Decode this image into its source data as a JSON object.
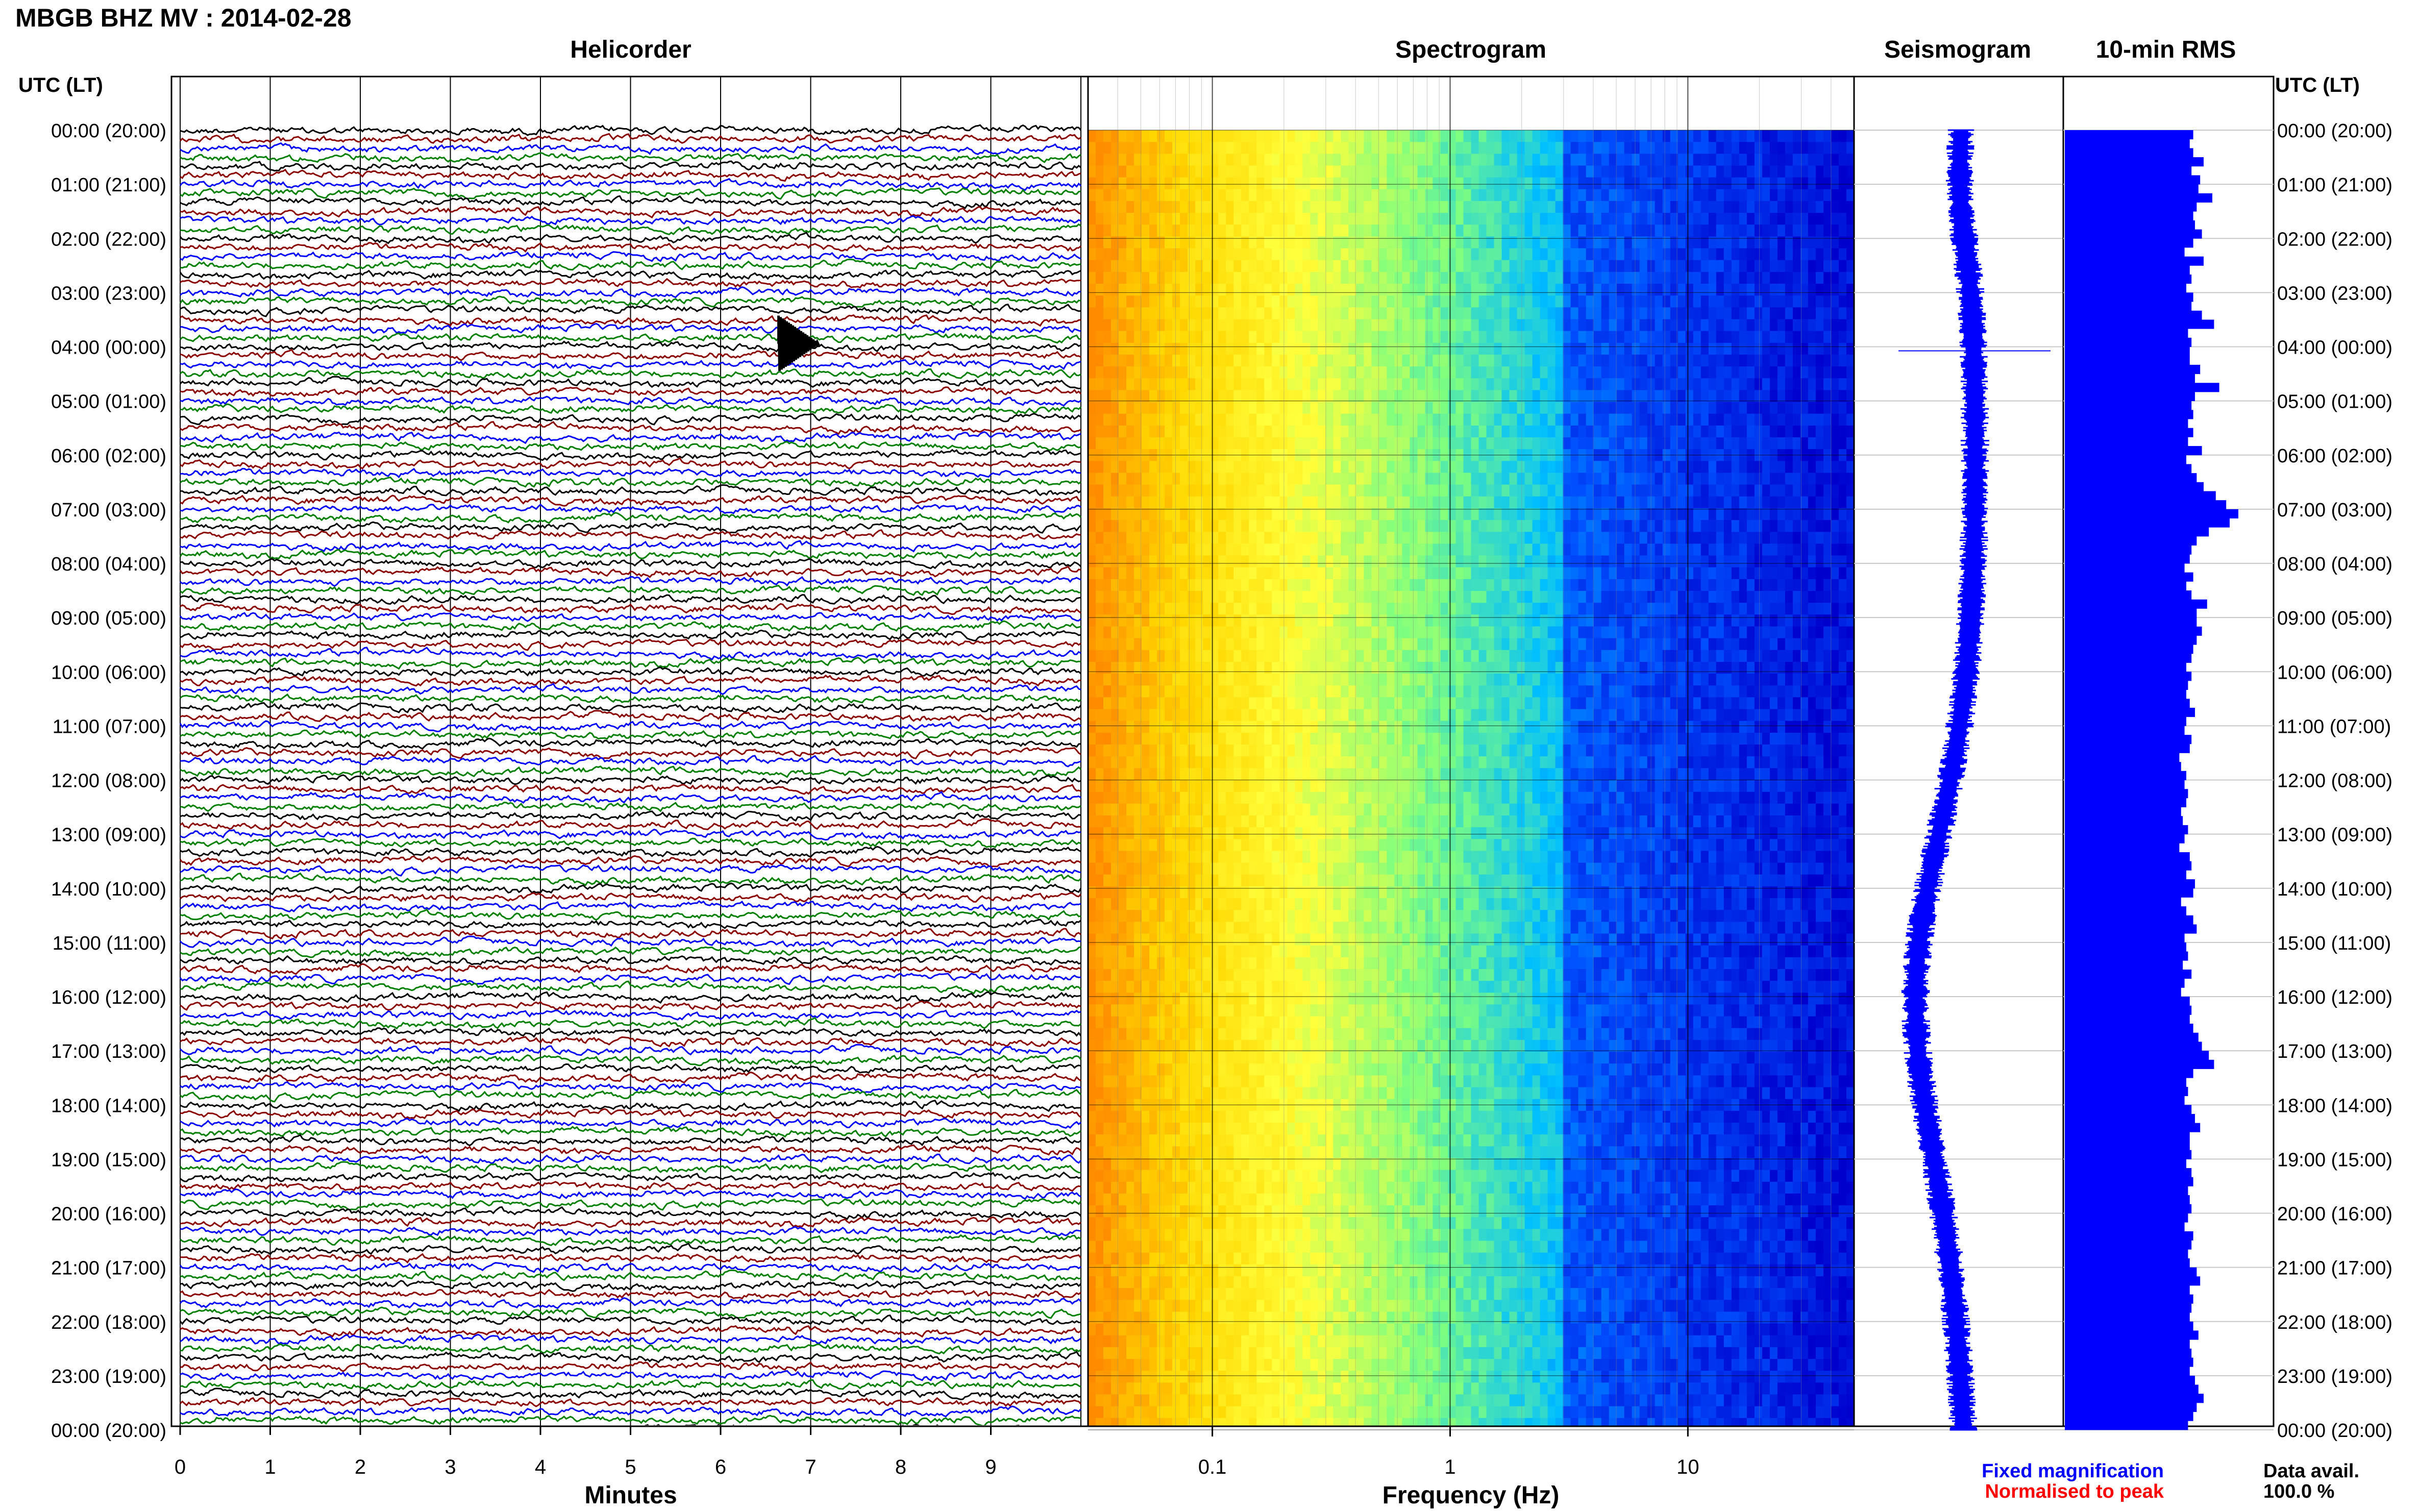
{
  "figure": {
    "title": "MBGB BHZ MV : 2014-02-28",
    "time_label_left": "UTC (LT)",
    "time_label_right": "UTC (LT)",
    "rows": [
      "00:00 (20:00)",
      "01:00 (21:00)",
      "02:00 (22:00)",
      "03:00 (23:00)",
      "04:00 (00:00)",
      "05:00 (01:00)",
      "06:00 (02:00)",
      "07:00 (03:00)",
      "08:00 (04:00)",
      "09:00 (05:00)",
      "10:00 (06:00)",
      "11:00 (07:00)",
      "12:00 (08:00)",
      "13:00 (09:00)",
      "14:00 (10:00)",
      "15:00 (11:00)",
      "16:00 (12:00)",
      "17:00 (13:00)",
      "18:00 (14:00)",
      "19:00 (15:00)",
      "20:00 (16:00)",
      "21:00 (17:00)",
      "22:00 (18:00)",
      "23:00 (19:00)",
      "00:00 (20:00)"
    ],
    "legend": {
      "fixed": "Fixed magnification",
      "normalised": "Normalised to peak",
      "fixed_color": "#0000ff",
      "normalised_color": "#ff0000"
    },
    "data_avail_label": "Data avail.",
    "data_avail_value": "100.0 %"
  },
  "chart_data": [
    {
      "type": "line",
      "title": "Helicorder",
      "xlabel": "Minutes",
      "x_ticks": [
        "0",
        "1",
        "2",
        "3",
        "4",
        "5",
        "6",
        "7",
        "8",
        "9"
      ],
      "xlim": [
        0,
        10
      ],
      "trace_colors": [
        "#000000",
        "#8b0000",
        "#0000ff",
        "#008000"
      ],
      "traces_per_hour": 6,
      "event": {
        "hour": 4,
        "minute": 6.7,
        "label": ""
      }
    },
    {
      "type": "heatmap",
      "title": "Spectrogram",
      "xlabel": "Frequency (Hz)",
      "x_scale": "log",
      "x_ticks": [
        "0.1",
        "1",
        "10"
      ],
      "xlim": [
        0.03,
        50
      ],
      "colormap": [
        "#ff8c00",
        "#ffd700",
        "#ffff3c",
        "#7fff7f",
        "#00bfff",
        "#0050ff",
        "#0000cd"
      ]
    },
    {
      "type": "line",
      "title": "Seismogram",
      "orientation": "vertical",
      "color": "#0000ff"
    },
    {
      "type": "bar",
      "title": "10-min RMS",
      "orientation": "horizontal",
      "color": "#0000ff",
      "values": [
        0.74,
        0.72,
        0.74,
        0.8,
        0.73,
        0.78,
        0.77,
        0.85,
        0.76,
        0.74,
        0.75,
        0.79,
        0.74,
        0.69,
        0.8,
        0.72,
        0.73,
        0.7,
        0.74,
        0.73,
        0.79,
        0.86,
        0.71,
        0.73,
        0.72,
        0.72,
        0.78,
        0.75,
        0.89,
        0.75,
        0.73,
        0.74,
        0.71,
        0.74,
        0.71,
        0.79,
        0.7,
        0.73,
        0.76,
        0.8,
        0.87,
        0.93,
        1.0,
        0.95,
        0.83,
        0.76,
        0.73,
        0.72,
        0.69,
        0.74,
        0.7,
        0.73,
        0.82,
        0.76,
        0.76,
        0.79,
        0.76,
        0.74,
        0.73,
        0.7,
        0.73,
        0.71,
        0.7,
        0.72,
        0.75,
        0.7,
        0.69,
        0.73,
        0.72,
        0.66,
        0.67,
        0.7,
        0.69,
        0.71,
        0.7,
        0.67,
        0.68,
        0.71,
        0.69,
        0.66,
        0.72,
        0.73,
        0.7,
        0.75,
        0.74,
        0.67,
        0.7,
        0.74,
        0.76,
        0.69,
        0.7,
        0.71,
        0.68,
        0.73,
        0.69,
        0.67,
        0.72,
        0.73,
        0.72,
        0.74,
        0.77,
        0.79,
        0.83,
        0.86,
        0.74,
        0.7,
        0.71,
        0.69,
        0.73,
        0.75,
        0.78,
        0.72,
        0.72,
        0.73,
        0.7,
        0.73,
        0.74,
        0.71,
        0.72,
        0.73,
        0.71,
        0.69,
        0.74,
        0.73,
        0.71,
        0.72,
        0.76,
        0.78,
        0.72,
        0.74,
        0.73,
        0.72,
        0.74,
        0.77,
        0.72,
        0.73,
        0.74,
        0.72,
        0.75,
        0.77,
        0.8,
        0.76,
        0.74,
        0.71
      ]
    }
  ]
}
